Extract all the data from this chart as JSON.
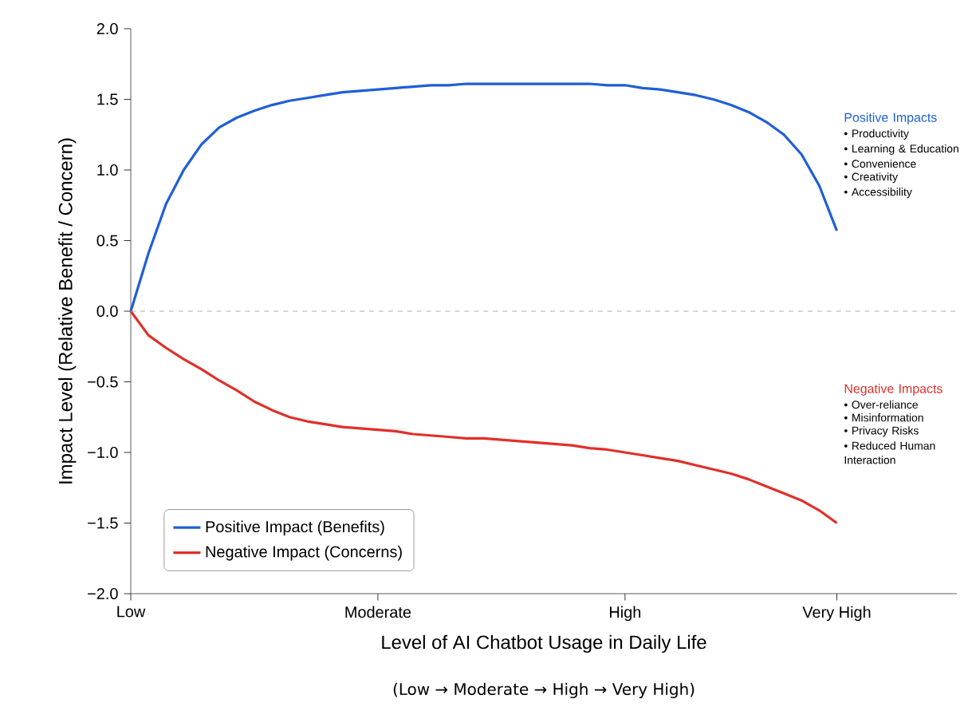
{
  "chart_data": {
    "type": "line",
    "xlabel": "Level of AI Chatbot Usage in Daily Life",
    "ylabel": "Impact Level (Relative Benefit / Concern)",
    "categories": [
      "Low",
      null,
      null,
      null,
      null,
      null,
      null,
      null,
      null,
      null,
      null,
      null,
      null,
      null,
      "Moderate",
      null,
      null,
      null,
      null,
      null,
      null,
      null,
      null,
      null,
      null,
      null,
      null,
      null,
      "High",
      null,
      null,
      null,
      null,
      null,
      null,
      null,
      null,
      null,
      null,
      null,
      "Very High"
    ],
    "ylim": [
      -2,
      2
    ],
    "yticks": [
      {
        "value": -2,
        "label": "−2.0"
      },
      {
        "value": -1.5,
        "label": "−1.5"
      },
      {
        "value": -1,
        "label": "−1.0"
      },
      {
        "value": -0.5,
        "label": "−0.5"
      },
      {
        "value": 0,
        "label": "0.0"
      },
      {
        "value": 0.5,
        "label": "0.5"
      },
      {
        "value": 1,
        "label": "1.0"
      },
      {
        "value": 1.5,
        "label": "1.5"
      },
      {
        "value": 2,
        "label": "2.0"
      }
    ],
    "series": [
      {
        "name": "Positive Impact (Benefits)",
        "color": "#1f5fd6",
        "values": [
          0,
          0.41,
          0.76,
          1.0,
          1.18,
          1.3,
          1.37,
          1.42,
          1.46,
          1.49,
          1.51,
          1.53,
          1.55,
          1.56,
          1.57,
          1.58,
          1.59,
          1.6,
          1.6,
          1.61,
          1.61,
          1.61,
          1.61,
          1.61,
          1.61,
          1.61,
          1.61,
          1.6,
          1.6,
          1.58,
          1.57,
          1.55,
          1.53,
          1.5,
          1.46,
          1.41,
          1.34,
          1.25,
          1.11,
          0.89,
          0.57
        ]
      },
      {
        "name": "Negative Impact (Concerns)",
        "color": "#e0302a",
        "values": [
          0,
          -0.17,
          -0.26,
          -0.34,
          -0.41,
          -0.49,
          -0.56,
          -0.64,
          -0.7,
          -0.75,
          -0.78,
          -0.8,
          -0.82,
          -0.83,
          -0.84,
          -0.85,
          -0.87,
          -0.88,
          -0.89,
          -0.9,
          -0.9,
          -0.91,
          -0.92,
          -0.93,
          -0.94,
          -0.95,
          -0.97,
          -0.98,
          -1.0,
          -1.02,
          -1.04,
          -1.06,
          -1.09,
          -1.12,
          -1.15,
          -1.19,
          -1.24,
          -1.29,
          -1.34,
          -1.41,
          -1.5
        ]
      }
    ],
    "ref_lines": [
      {
        "axis": "y",
        "value": 0,
        "color": "#999999",
        "line_style": "dashed"
      }
    ],
    "annotations": [
      "Positive Impacts",
      "• Productivity",
      "• Learning & Education",
      "• Convenience",
      "• Creativity",
      "• Accessibility",
      "Negative Impacts",
      "• Over-reliance",
      "• Misinformation",
      "• Privacy Risks",
      "• Reduced Human Interaction",
      "(Low → Moderate → High → Very High)"
    ],
    "legend": "bottom left",
    "grid": false,
    "marker": "none",
    "line_style": "solid"
  }
}
